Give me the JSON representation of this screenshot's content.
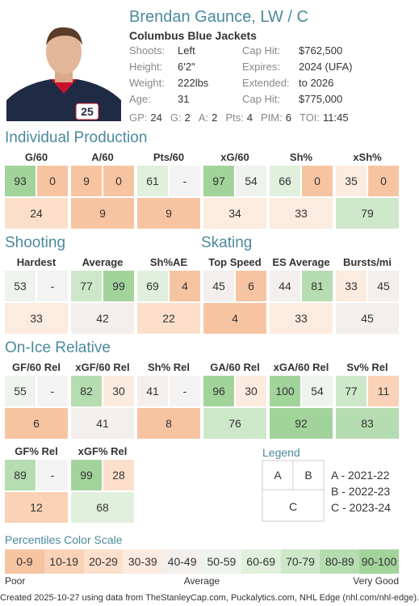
{
  "header": {
    "name": "Brendan Gaunce, LW / C",
    "team": "Columbus Blue Jackets",
    "info": [
      {
        "label": "Shoots:",
        "value": "Left",
        "label2": "Cap Hit:",
        "value2": "$762,500"
      },
      {
        "label": "Height:",
        "value": "6'2\"",
        "label2": "Expires:",
        "value2": "2024 (UFA)"
      },
      {
        "label": "Weight:",
        "value": "222lbs",
        "label2": "Extended:",
        "value2": "to 2026"
      },
      {
        "label": "Age:",
        "value": 31,
        "label2": "Cap Hit:",
        "value2": "$775,000"
      }
    ],
    "stats": [
      {
        "label": "GP:",
        "value": 24
      },
      {
        "label": "G:",
        "value": 2
      },
      {
        "label": "A:",
        "value": 2
      },
      {
        "label": "Pts:",
        "value": 4
      },
      {
        "label": "PIM:",
        "value": 6
      },
      {
        "label": "TOI:",
        "value": "11:45"
      }
    ]
  },
  "sections": [
    {
      "title": "Individual Production",
      "metrics": [
        {
          "label": "G/60",
          "a": 93,
          "b": 0,
          "c": 24
        },
        {
          "label": "A/60",
          "a": 9,
          "b": 0,
          "c": 9
        },
        {
          "label": "Pts/60",
          "a": 61,
          "b": "-",
          "c": 9
        },
        {
          "label": "xG/60",
          "a": 97,
          "b": 54,
          "c": 34
        },
        {
          "label": "Sh%",
          "a": 66,
          "b": 0,
          "c": 33
        },
        {
          "label": "xSh%",
          "a": 35,
          "b": 0,
          "c": 79
        }
      ]
    },
    {
      "title": "Shooting",
      "metrics": [
        {
          "label": "Hardest",
          "a": 53,
          "b": "-",
          "c": 33
        },
        {
          "label": "Average",
          "a": 77,
          "b": 99,
          "c": 42
        },
        {
          "label": "Sh%AE",
          "a": 69,
          "b": 4,
          "c": 22
        }
      ]
    },
    {
      "title": "Skating",
      "metrics": [
        {
          "label": "Top Speed",
          "a": 45,
          "b": 6,
          "c": 4
        },
        {
          "label": "ES Average",
          "a": 44,
          "b": 81,
          "c": 33
        },
        {
          "label": "Bursts/mi",
          "a": 33,
          "b": 45,
          "c": 45
        }
      ]
    },
    {
      "title": "On-Ice Relative",
      "metrics": [
        {
          "label": "GF/60 Rel",
          "a": 55,
          "b": "-",
          "c": 6
        },
        {
          "label": "xGF/60 Rel",
          "a": 82,
          "b": 30,
          "c": 41
        },
        {
          "label": "Sh% Rel",
          "a": 41,
          "b": "-",
          "c": 8
        },
        {
          "label": "GA/60 Rel",
          "a": 96,
          "b": 30,
          "c": 76
        },
        {
          "label": "xGA/60 Rel",
          "a": 100,
          "b": 54,
          "c": 92
        },
        {
          "label": "Sv% Rel",
          "a": 77,
          "b": 11,
          "c": 83
        },
        {
          "label": "GF% Rel",
          "a": 89,
          "b": "-",
          "c": 12
        },
        {
          "label": "xGF% Rel",
          "a": 99,
          "b": 28,
          "c": 68
        }
      ]
    }
  ],
  "legend": {
    "title": "Legend",
    "a": "A",
    "b": "B",
    "c": "C",
    "entries": [
      "A - 2021-22",
      "B - 2022-23",
      "C - 2023-24"
    ]
  },
  "color_scale": {
    "title": "Percentiles Color Scale",
    "labels": [
      "0-9",
      "10-19",
      "20-29",
      "30-39",
      "40-49",
      "50-59",
      "60-69",
      "70-79",
      "80-89",
      "90-100"
    ],
    "colors": [
      "#f7c4a2",
      "#f9d2b7",
      "#fbdfcb",
      "#fcebdf",
      "#f3efec",
      "#eef4ed",
      "#e0f0dd",
      "#cde8c9",
      "#b6ddb1",
      "#a2d39b"
    ],
    "empty_color": "#f3f3f3",
    "poor": "Poor",
    "average": "Average",
    "good": "Very Good"
  },
  "footer": "Created 2025-10-27 using data from TheStanleyCap.com, Puckalytics.com, NHL Edge (nhl.com/nhl-edge)."
}
